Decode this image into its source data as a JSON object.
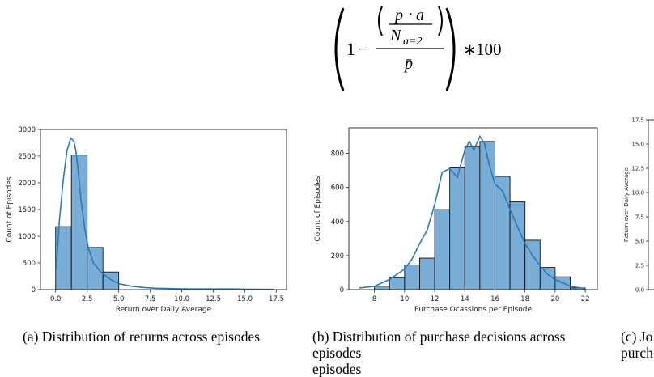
{
  "formula": {
    "one": "1",
    "minus": "−",
    "vec_p": "p⃗",
    "dot": "·",
    "vec_a": "a⃗",
    "N": "N",
    "N_sub": "a=2",
    "p_bar": "p̄",
    "times": "∗",
    "hundred": "100"
  },
  "figures": [
    {
      "caption": "(a) Distribution of returns across episodes",
      "chart_data": {
        "type": "bar",
        "title": "",
        "xlabel": "Return over Daily Average",
        "ylabel": "Count of Episodes",
        "bins": [
          [
            0,
            1.25
          ],
          [
            1.25,
            2.5
          ],
          [
            2.5,
            3.75
          ],
          [
            3.75,
            5.0
          ]
        ],
        "values": [
          1180,
          2520,
          790,
          330
        ],
        "xlim": [
          -1.2,
          18.3
        ],
        "ylim": [
          0,
          3000
        ],
        "xticks": [
          "0.0",
          "2.5",
          "5.0",
          "7.5",
          "10.0",
          "12.5",
          "15.0",
          "17.5"
        ],
        "yticks": [
          "0",
          "500",
          "1000",
          "1500",
          "2000",
          "2500",
          "3000"
        ],
        "kde": {
          "x": [
            0.05,
            0.3,
            0.6,
            0.9,
            1.2,
            1.45,
            1.6,
            1.8,
            2.0,
            2.3,
            2.6,
            3.0,
            3.5,
            4.0,
            4.5,
            5.0,
            6.0,
            7.0,
            8.0,
            10.0,
            12.0,
            14.0,
            15.5,
            17.3
          ],
          "y": [
            400,
            1300,
            2050,
            2600,
            2840,
            2780,
            2600,
            2200,
            1700,
            1150,
            780,
            500,
            350,
            250,
            170,
            110,
            65,
            40,
            25,
            15,
            12,
            12,
            8,
            5
          ]
        },
        "grid": false
      }
    },
    {
      "caption": "(b) Distribution of purchase decisions across episodes",
      "chart_data": {
        "type": "bar",
        "title": "",
        "xlabel": "Purchase Ocassions per Episode",
        "ylabel": "Count of Episodes",
        "bins": [
          [
            8,
            9
          ],
          [
            9,
            10
          ],
          [
            10,
            11
          ],
          [
            11,
            12
          ],
          [
            12,
            13
          ],
          [
            13,
            14
          ],
          [
            14,
            15
          ],
          [
            15,
            16
          ],
          [
            16,
            17
          ],
          [
            17,
            18
          ],
          [
            18,
            19
          ],
          [
            19,
            20
          ],
          [
            20,
            21
          ],
          [
            21,
            22
          ]
        ],
        "values": [
          20,
          70,
          145,
          185,
          470,
          715,
          840,
          870,
          665,
          515,
          290,
          130,
          75,
          10
        ],
        "xlim": [
          6.3,
          22.8
        ],
        "ylim": [
          0,
          950
        ],
        "xticks": [
          "8",
          "10",
          "12",
          "14",
          "16",
          "18",
          "20",
          "22"
        ],
        "yticks": [
          "0",
          "200",
          "400",
          "600",
          "800"
        ],
        "kde": {
          "x": [
            7.0,
            8.0,
            9.0,
            10.0,
            10.5,
            11.0,
            11.5,
            12.0,
            12.5,
            13.0,
            13.5,
            14.0,
            14.3,
            14.6,
            15.0,
            15.3,
            15.6,
            16.0,
            16.5,
            17.0,
            17.5,
            18.0,
            18.5,
            19.0,
            19.5,
            20.0,
            21.0,
            22.0
          ],
          "y": [
            10,
            20,
            60,
            120,
            180,
            270,
            350,
            500,
            690,
            710,
            660,
            820,
            870,
            820,
            900,
            860,
            740,
            620,
            580,
            470,
            370,
            270,
            200,
            140,
            90,
            60,
            20,
            5
          ]
        },
        "grid": false
      }
    },
    {
      "caption_line1": "(c) Jo",
      "caption_line2": "purch",
      "chart_data": {
        "type": "scatter",
        "title": "",
        "xlabel": "",
        "ylabel": "Return over Daily Average",
        "ylim": [
          0,
          17.5
        ],
        "yticks": [
          "0.0",
          "2.5",
          "5.0",
          "7.5",
          "10.0",
          "12.5",
          "15.0",
          "17.5"
        ],
        "grid": false
      }
    }
  ],
  "caption_b_line2": "episodes",
  "colors": {
    "bar_fill": "#7aadd6",
    "bar_edge": "#111111",
    "kde_line": "#2f78b5",
    "axis": "#222222"
  }
}
